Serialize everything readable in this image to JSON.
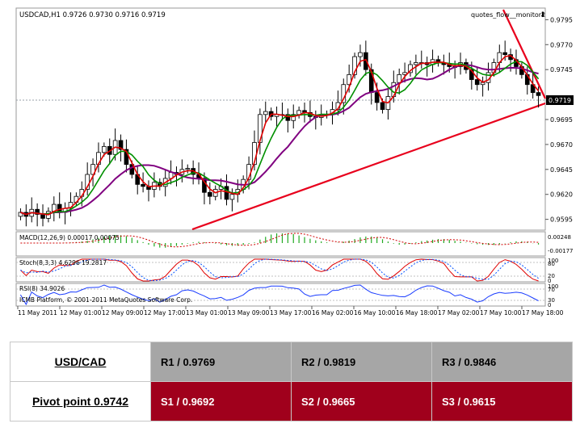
{
  "header": {
    "symbol_info": "USDCAD,H1  0.9726 0.9730 0.9716 0.9719",
    "indicator_name": "quotes_flow__monitor2"
  },
  "price_axis": {
    "ticks": [
      "0.9795",
      "0.9770",
      "0.9745",
      "0.9695",
      "0.9670",
      "0.9645",
      "0.9620",
      "0.9595"
    ],
    "current_price": "0.9719"
  },
  "time_axis": {
    "labels": [
      "11 May 2011",
      "12 May 01:00",
      "12 May 09:00",
      "12 May 17:00",
      "13 May 01:00",
      "13 May 09:00",
      "13 May 17:00",
      "16 May 02:00",
      "16 May 10:00",
      "16 May 18:00",
      "17 May 02:00",
      "17 May 10:00",
      "17 May 18:00"
    ]
  },
  "macd": {
    "label": "MACD(12,26,9) 0.00017 0.00075",
    "ticks": [
      "0.00248",
      "-0.00177"
    ]
  },
  "stoch": {
    "label": "Stoch(8,3,3) 4.6296 19.2817",
    "ticks": [
      "100",
      "80",
      "20",
      "0"
    ]
  },
  "rsi": {
    "label": "RSI(8) 34.9026",
    "copyright": "ICMB Platform, © 2001-2011 MetaQuotes Software Corp.",
    "ticks": [
      "100",
      "70",
      "30",
      "0"
    ]
  },
  "pivot_table": {
    "pair": "USD/CAD",
    "pivot": "Pivot point 0.9742",
    "r1": "R1 / 0.9769",
    "r2": "R2 / 0.9819",
    "r3": "R3 / 0.9846",
    "s1": "S1 / 0.9692",
    "s2": "S2 / 0.9665",
    "s3": "S3 / 0.9615"
  },
  "colors": {
    "ma_fast": "#e00000",
    "ma_mid": "#009000",
    "ma_slow": "#800080",
    "trendline": "#e8001c",
    "macd_bars": "#22aa22",
    "resistance_bg": "#a6a6a6",
    "support_bg": "#a0001c"
  },
  "chart_data": {
    "type": "candlestick",
    "symbol": "USDCAD",
    "timeframe": "H1",
    "ylim": [
      0.9585,
      0.9805
    ],
    "last_price": 0.9719,
    "close_series": [
      0.9602,
      0.9598,
      0.9605,
      0.96,
      0.9596,
      0.9603,
      0.961,
      0.9602,
      0.9606,
      0.9612,
      0.9618,
      0.9625,
      0.964,
      0.965,
      0.9662,
      0.9668,
      0.966,
      0.9674,
      0.9665,
      0.965,
      0.964,
      0.963,
      0.9628,
      0.9625,
      0.9632,
      0.9628,
      0.9636,
      0.9642,
      0.964,
      0.9645,
      0.9646,
      0.964,
      0.9636,
      0.9622,
      0.9618,
      0.9625,
      0.9628,
      0.9615,
      0.962,
      0.9625,
      0.9635,
      0.965,
      0.9672,
      0.97,
      0.9703,
      0.9698,
      0.97,
      0.97,
      0.9694,
      0.97,
      0.9704,
      0.9702,
      0.9698,
      0.9697,
      0.97,
      0.97,
      0.9705,
      0.9712,
      0.973,
      0.974,
      0.9758,
      0.9762,
      0.9745,
      0.9722,
      0.9712,
      0.9705,
      0.9718,
      0.9732,
      0.974,
      0.9742,
      0.975,
      0.9752,
      0.9752,
      0.975,
      0.9755,
      0.9752,
      0.975,
      0.9748,
      0.9748,
      0.9752,
      0.9745,
      0.9735,
      0.973,
      0.9732,
      0.9742,
      0.9752,
      0.9762,
      0.976,
      0.9755,
      0.9748,
      0.974,
      0.973,
      0.9722,
      0.9719
    ],
    "trendlines": [
      {
        "name": "support",
        "from": [
          0.9589
        ],
        "to": [
          0.9715
        ]
      },
      {
        "name": "resistance",
        "from": [
          0.982
        ],
        "to": [
          0.9719
        ]
      }
    ]
  }
}
